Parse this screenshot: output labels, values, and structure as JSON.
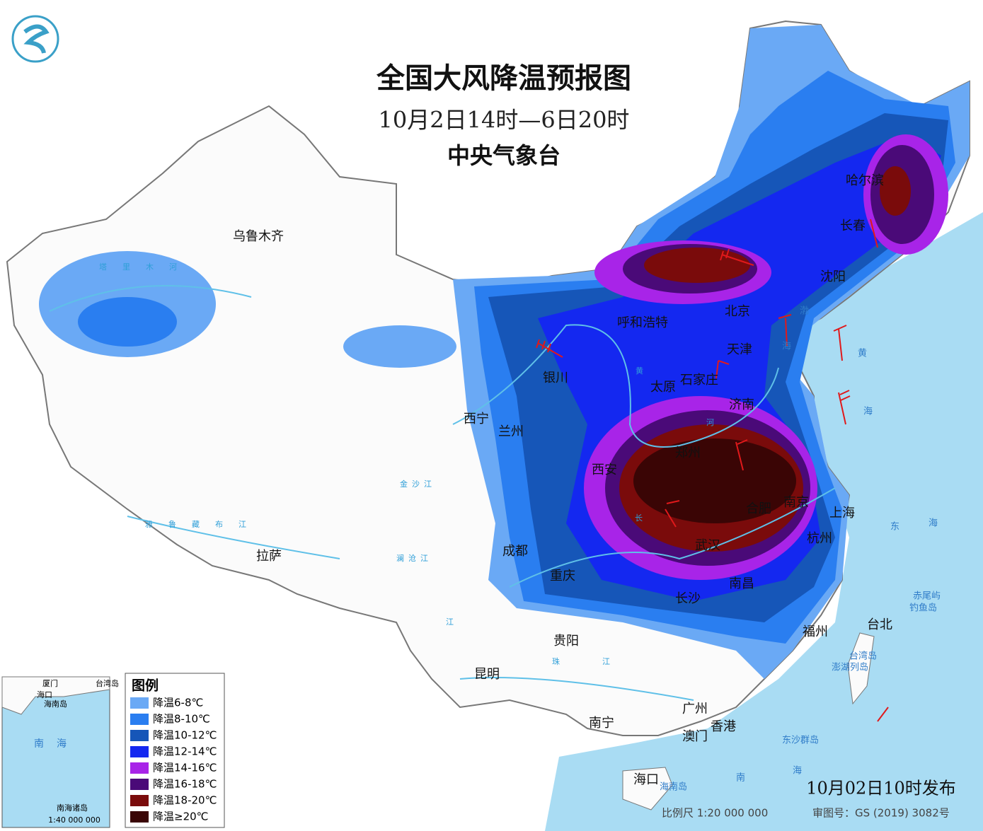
{
  "header": {
    "title": "全国大风降温预报图",
    "period": "10月2日14时—6日20时",
    "issuer": "中央气象台"
  },
  "legend": {
    "title": "图例",
    "items": [
      {
        "label": "降温6-8℃",
        "color": "#6aa9f5"
      },
      {
        "label": "降温8-10℃",
        "color": "#2a7ef0"
      },
      {
        "label": "降温10-12℃",
        "color": "#1656b8"
      },
      {
        "label": "降温12-14℃",
        "color": "#1428f0"
      },
      {
        "label": "降温14-16℃",
        "color": "#a824e8"
      },
      {
        "label": "降温16-18℃",
        "color": "#4a0a78"
      },
      {
        "label": "降温18-20℃",
        "color": "#7a0b0b"
      },
      {
        "label": "降温≥20℃",
        "color": "#3a0505"
      }
    ]
  },
  "cities": [
    "乌鲁木齐",
    "拉萨",
    "西宁",
    "兰州",
    "银川",
    "呼和浩特",
    "北京",
    "天津",
    "石家庄",
    "太原",
    "济南",
    "郑州",
    "西安",
    "成都",
    "重庆",
    "武汉",
    "合肥",
    "南京",
    "上海",
    "杭州",
    "长沙",
    "南昌",
    "福州",
    "台北",
    "贵阳",
    "昆明",
    "南宁",
    "广州",
    "香港",
    "澳门",
    "海口",
    "哈尔滨",
    "长春",
    "沈阳"
  ],
  "places": [
    "渤",
    "海",
    "黄",
    "海",
    "东",
    "海",
    "南",
    "海",
    "台湾岛",
    "海南岛",
    "钓鱼岛",
    "赤尾屿",
    "澎湖列岛",
    "东沙群岛"
  ],
  "rivers": [
    "塔里木河",
    "雅鲁藏布江",
    "澜沧江",
    "金沙江",
    "珠江",
    "黄",
    "河",
    "长",
    "江"
  ],
  "inset": {
    "labels": [
      "厦门",
      "台湾岛",
      "海口",
      "海南岛",
      "南海",
      "南海诸岛"
    ],
    "scale": "1:40 000 000"
  },
  "footer": {
    "release": "10月02日10时发布",
    "scale": "比例尺 1:20 000 000",
    "review": "审图号：GS (2019) 3082号"
  }
}
